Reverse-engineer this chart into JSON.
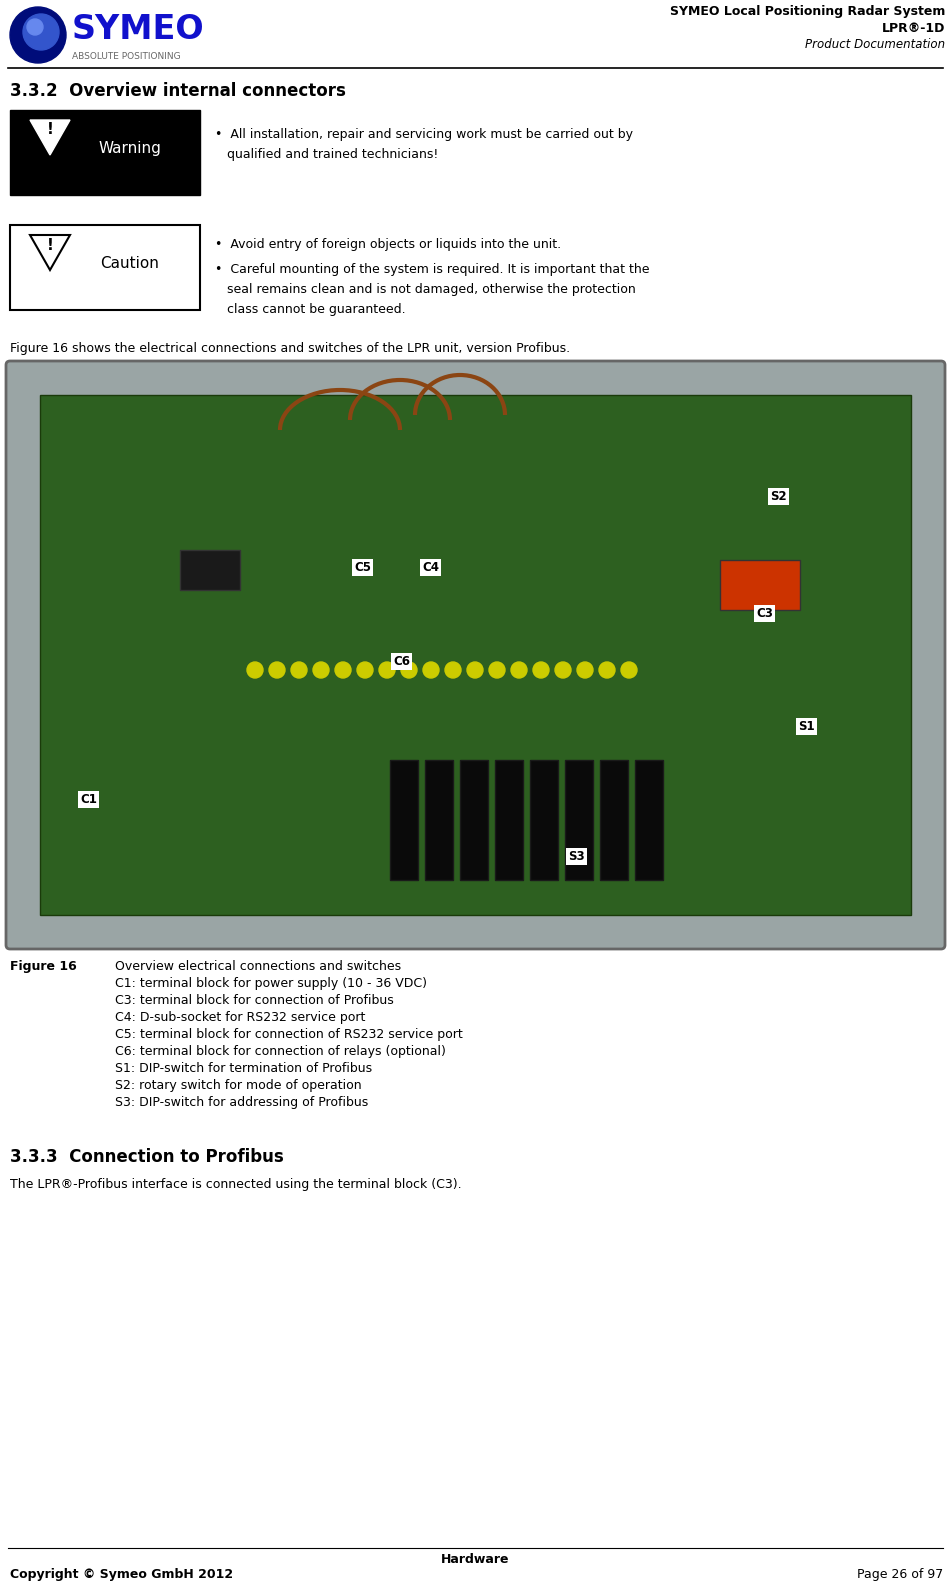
{
  "page_width": 9.51,
  "page_height": 15.93,
  "dpi": 100,
  "bg_color": "#ffffff",
  "header": {
    "title_line1": "SYMEO Local Positioning Radar System",
    "title_line2": "LPR®-1D",
    "title_line3": "Product Documentation",
    "logo_text": "SYMEO",
    "logo_sub": "ABSOLUTE POSITIONING"
  },
  "section_title": "3.3.2  Overview internal connectors",
  "warning_label": "Warning",
  "warn_line1": "•  All installation, repair and servicing work must be carried out by",
  "warn_line2": "   qualified and trained technicians!",
  "caution_label": "Caution",
  "caution_bullet1": "•  Avoid entry of foreign objects or liquids into the unit.",
  "caution_b2l1": "•  Careful mounting of the system is required. It is important that the",
  "caution_b2l2": "   seal remains clean and is not damaged, otherwise the protection",
  "caution_b2l3": "   class cannot be guaranteed.",
  "figure_intro": "Figure 16 shows the electrical connections and switches of the LPR unit, version Profibus.",
  "figure_label": "Figure 16",
  "figure_caption": [
    "Overview electrical connections and switches",
    "C1: terminal block for power supply (10 - 36 VDC)",
    "C3: terminal block for connection of Profibus",
    "C4: D-sub-socket for RS232 service port",
    "C5: terminal block for connection of RS232 service port",
    "C6: terminal block for connection of relays (optional)",
    "S1: DIP-switch for termination of Profibus",
    "S2: rotary switch for mode of operation",
    "S3: DIP-switch for addressing of Profibus"
  ],
  "section2_title": "3.3.3  Connection to Profibus",
  "section2_text": "The LPR®-Profibus interface is connected using the terminal block (C3).",
  "footer_center": "Hardware",
  "footer_left": "Copyright © Symeo GmbH 2012",
  "footer_right": "Page 26 of 97",
  "pcb_bg": "#7a8a8a",
  "pcb_green": "#2a5c1e",
  "yellow": "#ffff00",
  "white": "#ffffff",
  "black": "#000000",
  "label_bg_white": "#ffffff",
  "label_bg_dark": "#1a5a1a"
}
